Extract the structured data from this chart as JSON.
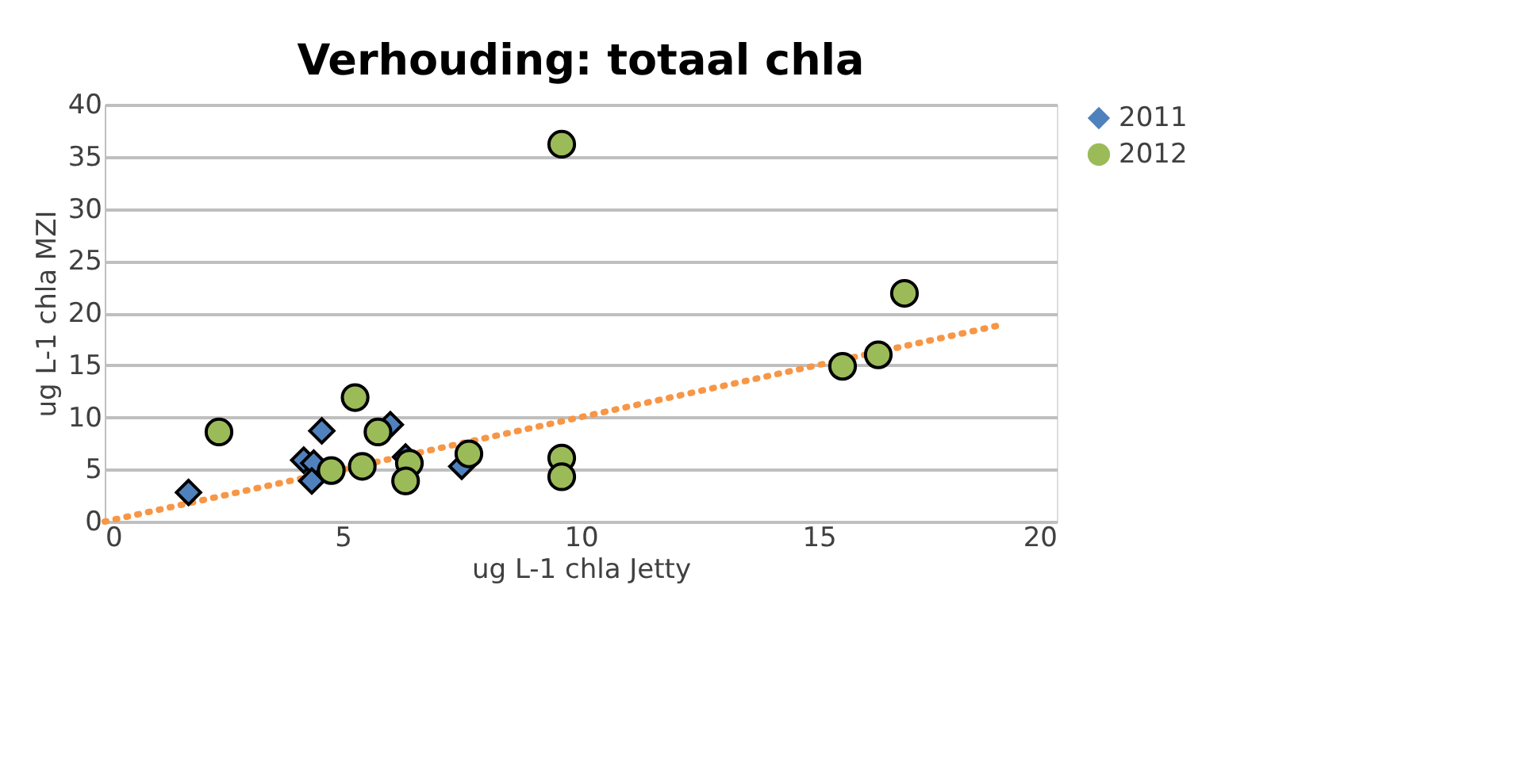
{
  "chart_data": {
    "type": "scatter",
    "title": "Verhouding: totaal chla",
    "xlabel": "ug L-1 chla Jetty",
    "ylabel": "ug L-1 chla MZI",
    "xlim": [
      0,
      20
    ],
    "xticks": [
      0,
      5,
      10,
      15,
      20
    ],
    "ylim": [
      0,
      40
    ],
    "yticks": [
      0,
      5,
      10,
      15,
      20,
      25,
      30,
      35,
      40
    ],
    "grid": "y",
    "legend": "right",
    "series": [
      {
        "name": "2011",
        "color": "#4f81bd",
        "marker": "diamond",
        "x": [
          1.76,
          4.56,
          4.18,
          4.39,
          4.35,
          6.0,
          6.32,
          7.5
        ],
        "values": [
          2.8,
          8.7,
          5.9,
          5.6,
          3.9,
          9.3,
          6.2,
          5.3
        ]
      },
      {
        "name": "2012",
        "color": "#9bbb59",
        "marker": "circle",
        "x": [
          2.4,
          5.26,
          5.74,
          4.76,
          5.41,
          6.4,
          6.32,
          7.65,
          9.6,
          9.6,
          9.6,
          15.5,
          16.25,
          16.8
        ],
        "values": [
          8.6,
          11.9,
          8.6,
          4.9,
          5.3,
          5.6,
          3.9,
          6.5,
          36.2,
          6.1,
          4.3,
          14.9,
          16.0,
          21.9
        ]
      },
      {
        "type": "line",
        "color": "#f79646",
        "line_style": "dotted",
        "x": [
          0,
          18.86
        ],
        "values": [
          0,
          18.9
        ]
      }
    ]
  }
}
